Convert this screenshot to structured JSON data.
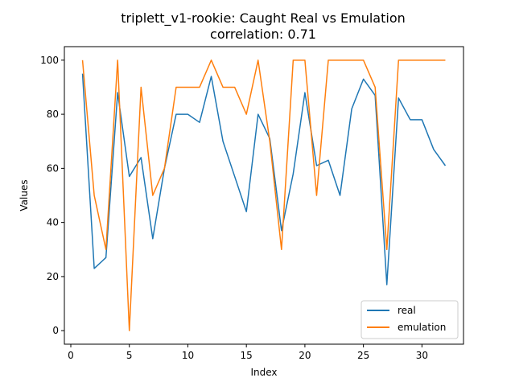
{
  "chart_data": {
    "type": "line",
    "title": "triplett_v1-rookie: Caught Real vs Emulation",
    "subtitle": "correlation: 0.71",
    "xlabel": "Index",
    "ylabel": "Values",
    "xlim": [
      -0.55,
      33.55
    ],
    "ylim": [
      -5,
      105
    ],
    "xticks": [
      0,
      5,
      10,
      15,
      20,
      25,
      30
    ],
    "yticks": [
      0,
      20,
      40,
      60,
      80,
      100
    ],
    "grid": false,
    "legend_position": "lower-right",
    "x": [
      1,
      2,
      3,
      4,
      5,
      6,
      7,
      8,
      9,
      10,
      11,
      12,
      13,
      14,
      15,
      16,
      17,
      18,
      19,
      20,
      21,
      22,
      23,
      24,
      25,
      26,
      27,
      28,
      29,
      30,
      31,
      32
    ],
    "series": [
      {
        "name": "real",
        "color": "#1f77b4",
        "values": [
          95,
          23,
          27,
          88,
          57,
          64,
          34,
          60,
          80,
          80,
          77,
          94,
          70,
          57,
          44,
          80,
          71,
          37,
          58,
          88,
          61,
          63,
          50,
          82,
          93,
          87,
          17,
          86,
          78,
          78,
          67,
          61
        ]
      },
      {
        "name": "emulation",
        "color": "#ff7f0e",
        "values": [
          100,
          50,
          30,
          100,
          0,
          90,
          50,
          60,
          90,
          90,
          90,
          100,
          90,
          90,
          80,
          100,
          70,
          30,
          100,
          100,
          50,
          100,
          100,
          100,
          100,
          90,
          30,
          100,
          100,
          100,
          100,
          100
        ]
      }
    ]
  }
}
